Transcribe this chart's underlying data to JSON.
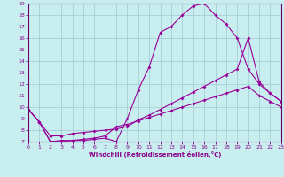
{
  "xlabel": "Windchill (Refroidissement éolien,°C)",
  "bg_color": "#c8eef0",
  "grid_color": "#a0c8d0",
  "line_color": "#990099",
  "xmin": 0,
  "xmax": 23,
  "ymin": 7,
  "ymax": 19,
  "series": [
    {
      "x": [
        0,
        1,
        2,
        3,
        4,
        5,
        6,
        7,
        8,
        9,
        10,
        11,
        12,
        13,
        14,
        15,
        16,
        17,
        18,
        19,
        20,
        21,
        22,
        23
      ],
      "y": [
        9.8,
        8.7,
        7.0,
        7.1,
        7.1,
        7.1,
        7.2,
        7.3,
        7.0,
        9.0,
        11.5,
        13.5,
        16.5,
        17.0,
        18.0,
        18.8,
        19.0,
        18.0,
        17.2,
        16.0,
        13.3,
        12.0,
        11.2,
        10.5
      ]
    },
    {
      "x": [
        0,
        1,
        2,
        3,
        4,
        5,
        6,
        7,
        8,
        9,
        10,
        11,
        12,
        13,
        14,
        15,
        16,
        17,
        18,
        19,
        20,
        21,
        22,
        23
      ],
      "y": [
        9.8,
        8.7,
        7.5,
        7.5,
        7.7,
        7.8,
        7.9,
        8.0,
        8.1,
        8.3,
        8.9,
        9.3,
        9.8,
        10.3,
        10.8,
        11.3,
        11.8,
        12.3,
        12.8,
        13.3,
        16.0,
        12.2,
        11.2,
        10.5
      ]
    },
    {
      "x": [
        0,
        1,
        2,
        3,
        4,
        5,
        6,
        7,
        8,
        9,
        10,
        11,
        12,
        13,
        14,
        15,
        16,
        17,
        18,
        19,
        20,
        21,
        22,
        23
      ],
      "y": [
        9.8,
        8.7,
        7.0,
        7.0,
        7.1,
        7.2,
        7.3,
        7.5,
        8.3,
        8.5,
        8.8,
        9.1,
        9.4,
        9.7,
        10.0,
        10.3,
        10.6,
        10.9,
        11.2,
        11.5,
        11.8,
        11.0,
        10.5,
        10.0
      ]
    }
  ]
}
